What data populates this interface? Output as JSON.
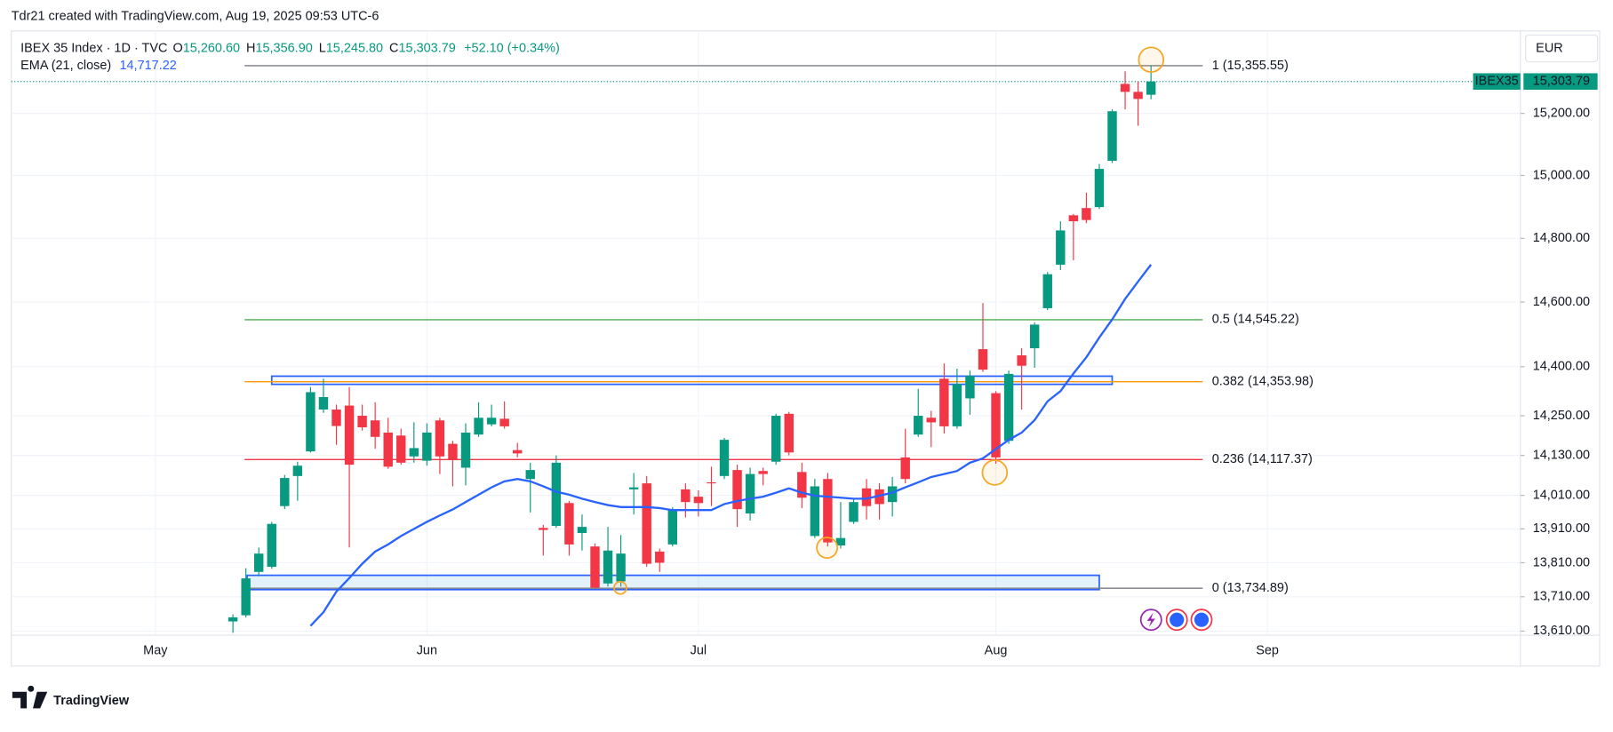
{
  "header": {
    "attribution": "Tdr21 created with TradingView.com, Aug 19, 2025 09:53 UTC-6"
  },
  "footer": {
    "brand": "TradingView"
  },
  "chart_data": {
    "type": "candlestick",
    "legend": {
      "symbol": "IBEX 35 Index · 1D · TVC",
      "open_label": "O",
      "open": "15,260.60",
      "high_label": "H",
      "high": "15,356.90",
      "low_label": "L",
      "low": "15,245.80",
      "close_label": "C",
      "close": "15,303.79",
      "change": "+52.10 (+0.34%)",
      "indicator": "EMA (21, close)",
      "indicator_value": "14,717.22"
    },
    "currency": "EUR",
    "price_tag": {
      "symbol": "IBEX35",
      "price": "15,303.79",
      "value": 15303.79,
      "color": "#089981"
    },
    "log": true,
    "grid": true,
    "up_color": "#089981",
    "down_color": "#f23645",
    "xlim": [
      -11.14,
      105.57
    ],
    "xticks": [
      {
        "value": 0,
        "label": "May"
      },
      {
        "value": 21,
        "label": "Jun"
      },
      {
        "value": 42,
        "label": "Jul"
      },
      {
        "value": 65,
        "label": "Aug"
      },
      {
        "value": 86,
        "label": "Sep"
      }
    ],
    "ylim": [
      13598,
      15470
    ],
    "yticks": [
      {
        "value": 13610,
        "label": "13,610.00"
      },
      {
        "value": 13710,
        "label": "13,710.00"
      },
      {
        "value": 13810,
        "label": "13,810.00"
      },
      {
        "value": 13910,
        "label": "13,910.00"
      },
      {
        "value": 14010,
        "label": "14,010.00"
      },
      {
        "value": 14130,
        "label": "14,130.00"
      },
      {
        "value": 14250,
        "label": "14,250.00"
      },
      {
        "value": 14400,
        "label": "14,400.00"
      },
      {
        "value": 14600,
        "label": "14,600.00"
      },
      {
        "value": 14800,
        "label": "14,800.00"
      },
      {
        "value": 15000,
        "label": "15,000.00"
      },
      {
        "value": 15200,
        "label": "15,200.00"
      }
    ],
    "x": [
      6,
      7,
      8,
      9,
      10,
      11,
      12,
      13,
      14,
      15,
      16,
      17,
      18,
      19,
      20,
      21,
      22,
      23,
      24,
      25,
      26,
      27,
      28,
      29,
      30,
      31,
      32,
      33,
      34,
      35,
      36,
      37,
      38,
      39,
      40,
      41,
      42,
      43,
      44,
      45,
      46,
      47,
      48,
      49,
      50,
      51,
      52,
      53,
      54,
      55,
      56,
      57,
      58,
      59,
      60,
      61,
      62,
      63,
      64,
      65,
      66,
      67,
      68,
      69,
      70,
      71,
      72,
      73,
      74,
      75,
      76,
      77
    ],
    "open": [
      13638,
      13656,
      13783,
      13798,
      13978,
      14068,
      14142,
      14269,
      14269,
      14281,
      14250,
      14236,
      14199,
      14190,
      14127,
      14114,
      14236,
      14165,
      14093,
      14193,
      14224,
      14241,
      14146,
      14059,
      13913,
      13919,
      13987,
      13898,
      13858,
      13749,
      13755,
      14028,
      14046,
      13843,
      13864,
      14028,
      14006,
      14049,
      14068,
      14086,
      13956,
      14083,
      14111,
      14256,
      14080,
      13889,
      14059,
      13861,
      13931,
      14031,
      14028,
      13990,
      14124,
      14193,
      14244,
      14363,
      14218,
      14303,
      14454,
      14319,
      14174,
      14435,
      14457,
      14581,
      14717,
      14873,
      14896,
      14899,
      15047,
      15296,
      15270,
      15260.6
    ],
    "high": [
      13659,
      13794,
      13855,
      13931,
      14071,
      14111,
      14338,
      14363,
      14284,
      14338,
      14284,
      14291,
      14244,
      14211,
      14230,
      14227,
      14244,
      14174,
      14227,
      14291,
      14284,
      14294,
      14168,
      14108,
      13922,
      14130,
      13993,
      13953,
      13867,
      13916,
      13892,
      14077,
      14068,
      13852,
      13975,
      14046,
      14025,
      14096,
      14183,
      14102,
      14093,
      14093,
      14256,
      14262,
      14108,
      14059,
      14077,
      13990,
      14000,
      14059,
      14046,
      14065,
      14211,
      14332,
      14265,
      14410,
      14394,
      14388,
      14597,
      14325,
      14388,
      14457,
      14537,
      14694,
      14854,
      14877,
      14945,
      15037,
      15213,
      15337,
      15304,
      15356.9
    ],
    "low": [
      13605,
      13650,
      13770,
      13792,
      13969,
      13994,
      14139,
      14259,
      14162,
      13855,
      14205,
      14150,
      14090,
      14102,
      14108,
      14099,
      14074,
      14037,
      14040,
      14186,
      14218,
      14211,
      14124,
      13959,
      13831,
      13913,
      13831,
      13846,
      13734,
      13740,
      13740,
      13953,
      13798,
      13783,
      13858,
      13944,
      13947,
      13978,
      14059,
      13916,
      13935,
      14040,
      14102,
      14130,
      13972,
      13883,
      13858,
      13852,
      13925,
      13938,
      13938,
      13947,
      14046,
      14186,
      14155,
      14196,
      14211,
      14253,
      14384,
      14105,
      14165,
      14269,
      14397,
      14575,
      14700,
      14731,
      14848,
      14893,
      15040,
      15213,
      15160,
      15245.8
    ],
    "close": [
      13650,
      13764,
      13837,
      13925,
      14062,
      14099,
      14322,
      14307,
      14219,
      14102,
      14215,
      14186,
      14096,
      14108,
      14152,
      14199,
      14127,
      14117,
      14199,
      14244,
      14244,
      14218,
      14136,
      14086,
      13907,
      14108,
      13864,
      13916,
      13737,
      13846,
      13837,
      14034,
      13807,
      13810,
      13966,
      13990,
      13987,
      14046,
      14177,
      13969,
      14074,
      14074,
      14250,
      14139,
      14003,
      14037,
      13870,
      13883,
      13990,
      13978,
      13984,
      14037,
      14059,
      14250,
      14230,
      14218,
      14347,
      14372,
      14391,
      14124,
      14378,
      14403,
      14530,
      14687,
      14825,
      14854,
      14858,
      15021,
      15207,
      15270,
      15247,
      15303.79
    ],
    "ema": {
      "color": "#2962ff",
      "x": [
        12,
        13,
        14,
        15,
        16,
        17,
        18,
        19,
        20,
        21,
        22,
        23,
        24,
        25,
        26,
        27,
        28,
        29,
        30,
        31,
        32,
        33,
        34,
        35,
        36,
        37,
        38,
        39,
        40,
        41,
        42,
        43,
        44,
        45,
        46,
        47,
        48,
        49,
        50,
        51,
        52,
        53,
        54,
        55,
        56,
        57,
        58,
        59,
        60,
        61,
        62,
        63,
        64,
        65,
        66,
        67,
        68,
        69,
        70,
        71,
        72,
        73,
        74,
        75,
        76,
        77
      ],
      "values": [
        13625,
        13665,
        13725,
        13765,
        13807,
        13843,
        13864,
        13889,
        13910,
        13931,
        13950,
        13968,
        13990,
        14012,
        14034,
        14052,
        14059,
        14052,
        14037,
        14021,
        14012,
        14000,
        13990,
        13981,
        13975,
        13975,
        13975,
        13972,
        13966,
        13966,
        13966,
        13966,
        13984,
        13993,
        14000,
        14006,
        14018,
        14031,
        14018,
        14009,
        14006,
        14003,
        14000,
        14000,
        14009,
        14018,
        14034,
        14049,
        14065,
        14074,
        14083,
        14108,
        14121,
        14149,
        14177,
        14199,
        14237,
        14294,
        14325,
        14379,
        14429,
        14490,
        14546,
        14610,
        14664,
        14717.22
      ]
    },
    "fib_x": [
      6.9,
      81.0
    ],
    "fib_levels": [
      {
        "label": "1 (15,355.55)",
        "price": 15355.55,
        "color": "#787b86"
      },
      {
        "label": "0.5 (14,545.22)",
        "price": 14545.22,
        "color": "#4caf50"
      },
      {
        "label": "0.382 (14,353.98)",
        "price": 14353.98,
        "color": "#ff9800"
      },
      {
        "label": "0.236 (14,117.37)",
        "price": 14117.37,
        "color": "#f23645"
      },
      {
        "label": "0 (13,734.89)",
        "price": 13734.89,
        "color": "#787b86"
      }
    ],
    "boxes": [
      {
        "x": [
          9.0,
          74.0
        ],
        "y": [
          14346,
          14371
        ],
        "color": "#2962ff",
        "fill": "rgba(41,98,255,0.04)"
      },
      {
        "x": [
          7.1,
          73.0
        ],
        "y": [
          13731,
          13773
        ],
        "color": "#2962ff",
        "fill": "rgba(33,150,243,0.12)"
      }
    ]
  }
}
